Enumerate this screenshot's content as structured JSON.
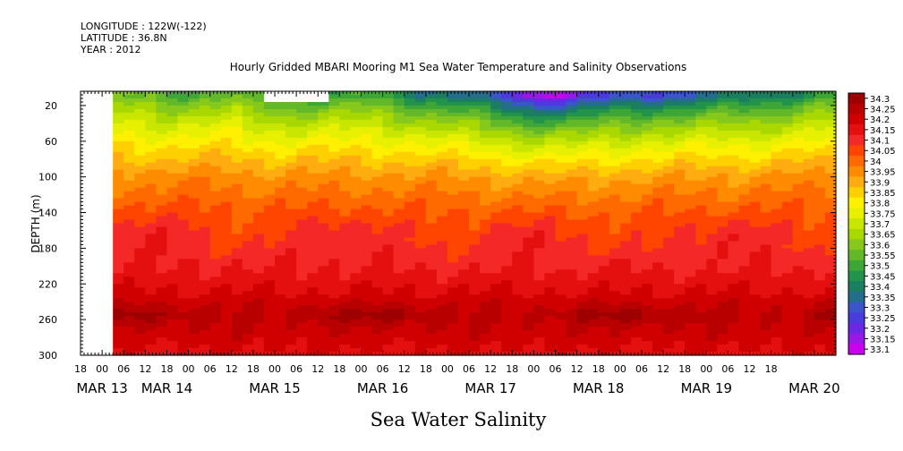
{
  "header": {
    "longitude": "LONGITUDE : 122W(-122)",
    "latitude": "LATITUDE : 36.8N",
    "year": "YEAR : 2012"
  },
  "chart_data": {
    "type": "heatmap",
    "title": "Hourly Gridded MBARI Mooring M1 Sea Water Temperature and Salinity Observations",
    "xlabel": "Sea Water Salinity",
    "ylabel": "DEPTH (m)",
    "y_ticks": [
      20,
      60,
      100,
      140,
      180,
      220,
      260,
      300
    ],
    "ylim": [
      300,
      4
    ],
    "x_hour_ticks": [
      "18",
      "00",
      "06",
      "12",
      "18",
      "00",
      "06",
      "12",
      "18",
      "00",
      "06",
      "12",
      "18",
      "00",
      "06",
      "12",
      "18",
      "00",
      "06",
      "12",
      "18",
      "00",
      "06",
      "12",
      "18",
      "00",
      "06",
      "12",
      "18",
      "00",
      "06",
      "12",
      "18"
    ],
    "x_day_labels": [
      "MAR 13",
      "MAR 14",
      "MAR 15",
      "MAR 16",
      "MAR 17",
      "MAR 18",
      "MAR 19",
      "MAR 20"
    ],
    "x_day_label_hours": [
      0,
      18,
      48,
      78,
      108,
      138,
      168,
      198
    ],
    "x_range_hours": [
      -6,
      204
    ],
    "data_start_hour": 3,
    "colorbar_levels": [
      "34.3",
      "34.25",
      "34.2",
      "34.15",
      "34.1",
      "34.05",
      "34",
      "33.95",
      "33.9",
      "33.85",
      "33.8",
      "33.75",
      "33.7",
      "33.65",
      "33.6",
      "33.55",
      "33.5",
      "33.45",
      "33.4",
      "33.35",
      "33.3",
      "33.25",
      "33.2",
      "33.15",
      "33.1"
    ],
    "colorbar_colors": [
      "#9e0000",
      "#b80000",
      "#d00000",
      "#e41010",
      "#f52828",
      "#ff4500",
      "#ff6a00",
      "#ff8c00",
      "#ffac10",
      "#ffd000",
      "#fff000",
      "#e6f000",
      "#c8e600",
      "#a8d800",
      "#86c81c",
      "#62b828",
      "#3ea636",
      "#22934a",
      "#1c7e60",
      "#246e8c",
      "#3a56c8",
      "#4a3cdc",
      "#6a28e4",
      "#9a18e6",
      "#c800ee"
    ],
    "depth_profile_mar13": [
      {
        "depth": 10,
        "salinity": 33.55
      },
      {
        "depth": 20,
        "salinity": 33.62
      },
      {
        "depth": 40,
        "salinity": 33.72
      },
      {
        "depth": 60,
        "salinity": 33.8
      },
      {
        "depth": 80,
        "salinity": 33.88
      },
      {
        "depth": 100,
        "salinity": 33.95
      },
      {
        "depth": 130,
        "salinity": 34.02
      },
      {
        "depth": 160,
        "salinity": 34.08
      },
      {
        "depth": 200,
        "salinity": 34.12
      },
      {
        "depth": 230,
        "salinity": 34.18
      },
      {
        "depth": 255,
        "salinity": 34.26
      },
      {
        "depth": 280,
        "salinity": 34.2
      },
      {
        "depth": 300,
        "salinity": 34.16
      }
    ],
    "gap_hours": [
      [
        45,
        63
      ]
    ],
    "gap_depth_max": 16
  }
}
